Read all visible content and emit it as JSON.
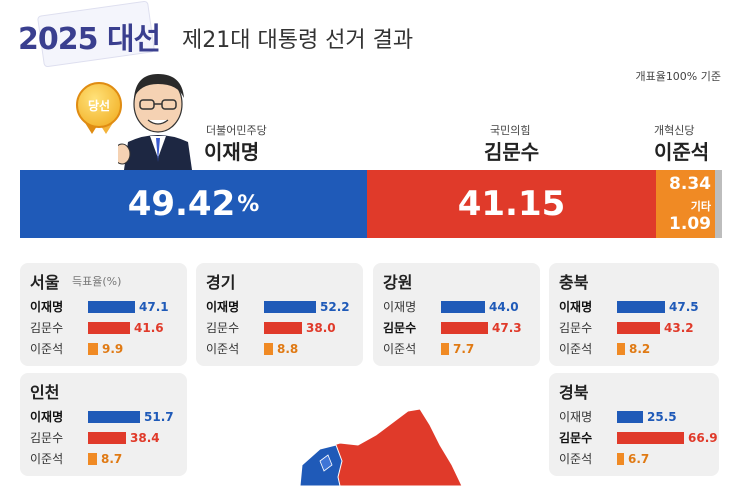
{
  "header": {
    "year_label": "2025",
    "election_label": "대선",
    "title": "제21대 대통령 선거 결과",
    "count_note": "개표율100% 기준"
  },
  "winner_badge": "당선",
  "candidates": [
    {
      "party": "더불어민주당",
      "name": "이재명",
      "color": "#1f5ab8"
    },
    {
      "party": "국민의힘",
      "name": "김문수",
      "color": "#e03a2a"
    },
    {
      "party": "개혁신당",
      "name": "이준석",
      "color": "#f08a24"
    }
  ],
  "other_label": "기타",
  "colors": {
    "lee": "#1f5ab8",
    "kim": "#e03a2a",
    "joon": "#f08a24",
    "other": "#bdbdbd",
    "card_bg": "#f0f0f0"
  },
  "chart_data": [
    {
      "type": "bar",
      "title": "",
      "categories": [
        "이재명",
        "김문수",
        "이준석",
        "기타"
      ],
      "values": [
        49.42,
        41.15,
        8.34,
        1.09
      ],
      "value_labels": [
        "49.42",
        "41.15",
        "8.34",
        "1.09"
      ],
      "percent_sign": "%"
    },
    {
      "type": "bar",
      "region": "서울",
      "subtitle": "득표율(%)",
      "categories": [
        "이재명",
        "김문수",
        "이준석"
      ],
      "values": [
        47.1,
        41.6,
        9.9
      ],
      "labels": [
        "47.1",
        "41.6",
        "9.9"
      ],
      "winner": 0
    },
    {
      "type": "bar",
      "region": "경기",
      "categories": [
        "이재명",
        "김문수",
        "이준석"
      ],
      "values": [
        52.2,
        38.0,
        8.8
      ],
      "labels": [
        "52.2",
        "38.0",
        "8.8"
      ],
      "winner": 0
    },
    {
      "type": "bar",
      "region": "강원",
      "categories": [
        "이재명",
        "김문수",
        "이준석"
      ],
      "values": [
        44.0,
        47.3,
        7.7
      ],
      "labels": [
        "44.0",
        "47.3",
        "7.7"
      ],
      "winner": 1
    },
    {
      "type": "bar",
      "region": "충북",
      "categories": [
        "이재명",
        "김문수",
        "이준석"
      ],
      "values": [
        47.5,
        43.2,
        8.2
      ],
      "labels": [
        "47.5",
        "43.2",
        "8.2"
      ],
      "winner": 0
    },
    {
      "type": "bar",
      "region": "인천",
      "categories": [
        "이재명",
        "김문수",
        "이준석"
      ],
      "values": [
        51.7,
        38.4,
        8.7
      ],
      "labels": [
        "51.7",
        "38.4",
        "8.7"
      ],
      "winner": 0
    },
    {
      "type": "bar",
      "region": "경북",
      "categories": [
        "이재명",
        "김문수",
        "이준석"
      ],
      "values": [
        25.5,
        66.9,
        6.7
      ],
      "labels": [
        "25.5",
        "66.9",
        "6.7"
      ],
      "winner": 1
    }
  ]
}
